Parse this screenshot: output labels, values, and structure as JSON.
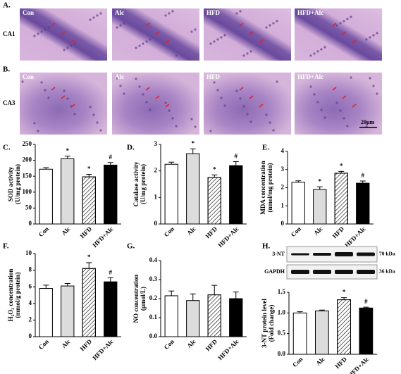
{
  "figure": {
    "image_labels": [
      "Con",
      "Alc",
      "HFD",
      "HFD+Alc"
    ],
    "rows": [
      {
        "label": "A.",
        "region": "CA1"
      },
      {
        "label": "B.",
        "region": "CA3"
      }
    ],
    "scale_bar": "20μm"
  },
  "chart_data": [
    {
      "type": "bar",
      "label": "C.",
      "ylabel": [
        "SOD activity",
        "(U/mg protein)"
      ],
      "categories": [
        "Con",
        "Alc",
        "HFD",
        "HFD+Alc"
      ],
      "values": [
        172,
        205,
        148,
        185
      ],
      "errors": [
        5,
        8,
        8,
        8
      ],
      "colors": [
        "#ffffff",
        "#dcdcdc",
        "#ffffff",
        "#000000"
      ],
      "patterns": [
        "solid",
        "solid",
        "hatch",
        "solid"
      ],
      "annotations": [
        null,
        "*",
        "*",
        "#"
      ],
      "annotation_colors": [
        null,
        "#3344aa",
        "#000000",
        "#000000"
      ],
      "ylim": [
        0,
        250
      ],
      "yticks": [
        0,
        50,
        100,
        150,
        200,
        250
      ]
    },
    {
      "type": "bar",
      "label": "D.",
      "ylabel": [
        "Catalase activity",
        "(U/mg protein)"
      ],
      "categories": [
        "Con",
        "Alc",
        "HFD",
        "HFD+Alc"
      ],
      "values": [
        2.25,
        2.65,
        1.75,
        2.2
      ],
      "errors": [
        0.08,
        0.18,
        0.1,
        0.15
      ],
      "colors": [
        "#ffffff",
        "#dcdcdc",
        "#ffffff",
        "#000000"
      ],
      "patterns": [
        "solid",
        "solid",
        "hatch",
        "solid"
      ],
      "annotations": [
        null,
        "*",
        "*",
        "#"
      ],
      "ylim": [
        0,
        3
      ],
      "yticks": [
        0,
        1,
        2,
        3
      ]
    },
    {
      "type": "bar",
      "label": "E.",
      "ylabel": [
        "MDA concentration",
        "(nmol/mg protein)"
      ],
      "categories": [
        "Con",
        "Alc",
        "HFD",
        "HFD+Alc"
      ],
      "values": [
        2.3,
        1.9,
        2.8,
        2.25
      ],
      "errors": [
        0.08,
        0.15,
        0.1,
        0.12
      ],
      "colors": [
        "#ffffff",
        "#dcdcdc",
        "#ffffff",
        "#000000"
      ],
      "patterns": [
        "solid",
        "solid",
        "hatch",
        "solid"
      ],
      "annotations": [
        null,
        "*",
        "*",
        "#"
      ],
      "ylim": [
        0,
        4
      ],
      "yticks": [
        0,
        1,
        2,
        3,
        4
      ]
    },
    {
      "type": "bar",
      "label": "F.",
      "ylabel": [
        "H₂O₂ concentration",
        "(mmol/g protein)"
      ],
      "categories": [
        "Con",
        "Alc",
        "HFD",
        "HFD+Alc"
      ],
      "values": [
        5.8,
        6.1,
        8.2,
        6.6
      ],
      "errors": [
        0.4,
        0.3,
        0.7,
        0.5
      ],
      "colors": [
        "#ffffff",
        "#dcdcdc",
        "#ffffff",
        "#000000"
      ],
      "patterns": [
        "solid",
        "solid",
        "hatch",
        "solid"
      ],
      "annotations": [
        null,
        null,
        "*",
        "#"
      ],
      "ylim": [
        0,
        10
      ],
      "yticks": [
        0,
        2,
        4,
        6,
        8,
        10
      ]
    },
    {
      "type": "bar",
      "label": "G.",
      "ylabel": [
        "NO concentration",
        "(μmol/L)"
      ],
      "categories": [
        "Con",
        "Alc",
        "HFD",
        "HFD+Alc"
      ],
      "values": [
        0.215,
        0.19,
        0.22,
        0.2
      ],
      "errors": [
        0.025,
        0.035,
        0.05,
        0.035
      ],
      "colors": [
        "#ffffff",
        "#dcdcdc",
        "#ffffff",
        "#000000"
      ],
      "patterns": [
        "solid",
        "solid",
        "hatch",
        "solid"
      ],
      "annotations": [
        null,
        null,
        null,
        null
      ],
      "ylim": [
        0,
        0.4
      ],
      "yticks": [
        {
          "value": 0,
          "label": "0.0"
        },
        0.1,
        0.2,
        0.3,
        0.4
      ]
    },
    {
      "type": "bar",
      "label": "H.",
      "ylabel": [
        "3-NT protein level",
        "(Fold change)"
      ],
      "categories": [
        "Con",
        "Alc",
        "HFD",
        "HFD+Alc"
      ],
      "values": [
        1.0,
        1.05,
        1.32,
        1.12
      ],
      "errors": [
        0.03,
        0.02,
        0.05,
        0.02
      ],
      "colors": [
        "#ffffff",
        "#dcdcdc",
        "#ffffff",
        "#000000"
      ],
      "patterns": [
        "solid",
        "solid",
        "hatch",
        "solid"
      ],
      "annotations": [
        null,
        null,
        "*",
        "#"
      ],
      "blot_labels": [
        "3-NT",
        "GAPDH"
      ],
      "blot_sizes": [
        "70 kDa",
        "36 kDa"
      ],
      "ylim": [
        0,
        1.5
      ],
      "yticks": [
        {
          "value": 0,
          "label": "0.0"
        },
        0.5,
        {
          "value": 1,
          "label": "1.0"
        },
        1.5
      ]
    }
  ]
}
